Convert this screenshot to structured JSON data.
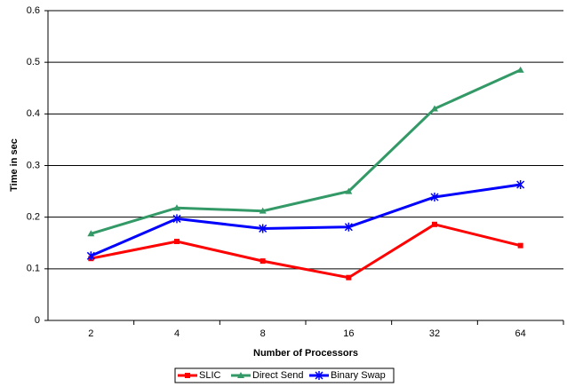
{
  "chart_data": {
    "type": "line",
    "x_label": "Number of Processors",
    "y_label": "Time in sec",
    "categories": [
      "2",
      "4",
      "8",
      "16",
      "32",
      "64"
    ],
    "series": [
      {
        "name": "SLIC",
        "color": "#ff0000",
        "marker": "square",
        "values": [
          0.12,
          0.153,
          0.115,
          0.083,
          0.186,
          0.145
        ]
      },
      {
        "name": "Direct Send",
        "color": "#339966",
        "marker": "triangle",
        "values": [
          0.168,
          0.218,
          0.212,
          0.25,
          0.41,
          0.485
        ]
      },
      {
        "name": "Binary Swap",
        "color": "#0000ff",
        "marker": "asterisk",
        "values": [
          0.125,
          0.197,
          0.178,
          0.181,
          0.239,
          0.263
        ]
      }
    ],
    "ylim": [
      0,
      0.6
    ],
    "yticks": [
      0,
      0.1,
      0.2,
      0.3,
      0.4,
      0.5,
      0.6
    ],
    "grid": true,
    "legend": "bottom"
  }
}
